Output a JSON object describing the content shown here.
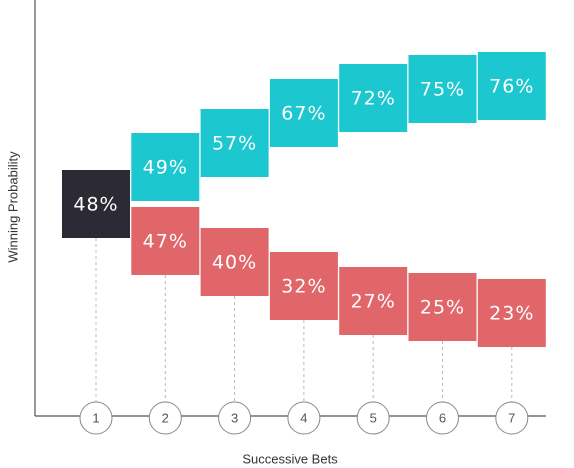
{
  "chart_data": {
    "type": "bar",
    "x_label": "Successive Bets",
    "y_label": "Winning Probability",
    "categories": [
      "1",
      "2",
      "3",
      "4",
      "5",
      "6",
      "7"
    ],
    "series": [
      {
        "color": "#2b2a35",
        "placement": "center",
        "values": [
          48,
          null,
          null,
          null,
          null,
          null,
          null
        ],
        "value_labels": [
          "48%",
          null,
          null,
          null,
          null,
          null,
          null
        ]
      },
      {
        "color": "#1cc7d0",
        "placement": "above",
        "values": [
          null,
          49,
          57,
          67,
          72,
          75,
          76
        ],
        "value_labels": [
          null,
          "49%",
          "57%",
          "67%",
          "72%",
          "75%",
          "76%"
        ]
      },
      {
        "color": "#e1666a",
        "placement": "below",
        "values": [
          null,
          47,
          40,
          32,
          27,
          25,
          23
        ],
        "value_labels": [
          null,
          "47%",
          "40%",
          "32%",
          "27%",
          "25%",
          "23%"
        ]
      }
    ]
  }
}
